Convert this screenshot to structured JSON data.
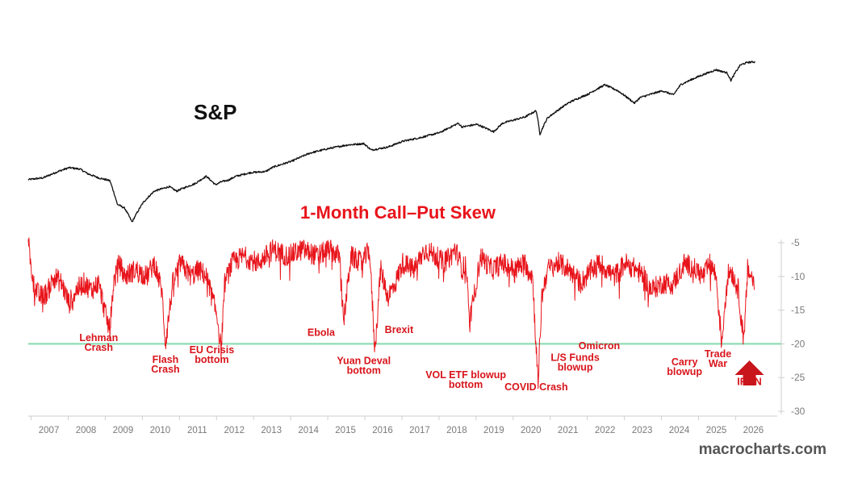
{
  "chart_data": {
    "type": "line",
    "sp_label": "S&P",
    "skew_title": "1-Month Call–Put Skew",
    "watermark": "macrocharts.com",
    "colors": {
      "sp": "#111111",
      "skew": "#e8141b",
      "threshold": "#8fdcb4",
      "axis": "#cfcfcf",
      "tick": "#7a7a7a"
    },
    "x_tick_labels": [
      "2007",
      "2008",
      "2009",
      "2010",
      "2011",
      "2012",
      "2013",
      "2014",
      "2015",
      "2016",
      "2017",
      "2018",
      "2019",
      "2020",
      "2021",
      "2022",
      "2023",
      "2024",
      "2025",
      "2026"
    ],
    "x_tick_values": [
      2007,
      2008,
      2009,
      2010,
      2011,
      2012,
      2013,
      2014,
      2015,
      2016,
      2017,
      2018,
      2019,
      2020,
      2021,
      2022,
      2023,
      2024,
      2025,
      2026
    ],
    "xlim": [
      2006.4,
      2026.6
    ],
    "y_tick_labels": [
      "-5",
      "-10",
      "-15",
      "-20",
      "-25",
      "-30"
    ],
    "y_tick_values": [
      -5,
      -10,
      -15,
      -20,
      -25,
      -30
    ],
    "ylim": [
      -30,
      -5
    ],
    "threshold": -20,
    "series": [
      {
        "id": "sp",
        "x": [
          2006.4,
          2006.8,
          2007.2,
          2007.5,
          2007.8,
          2008.0,
          2008.3,
          2008.6,
          2008.8,
          2009.0,
          2009.2,
          2009.5,
          2009.8,
          2010.2,
          2010.4,
          2010.6,
          2010.9,
          2011.2,
          2011.45,
          2011.6,
          2011.8,
          2012.0,
          2012.4,
          2012.8,
          2013.0,
          2013.5,
          2014.0,
          2014.5,
          2015.0,
          2015.45,
          2015.65,
          2016.1,
          2016.5,
          2017.0,
          2017.5,
          2018.0,
          2018.1,
          2018.5,
          2018.95,
          2019.2,
          2019.8,
          2020.1,
          2020.2,
          2020.4,
          2020.7,
          2021.0,
          2021.5,
          2021.95,
          2022.3,
          2022.75,
          2022.9,
          2023.5,
          2023.8,
          2024.0,
          2024.5,
          2024.95,
          2025.25,
          2025.35,
          2025.6,
          2025.8,
          2026.0
        ],
        "y": [
          1270,
          1300,
          1420,
          1500,
          1470,
          1380,
          1300,
          1250,
          900,
          850,
          700,
          920,
          1080,
          1150,
          1080,
          1130,
          1200,
          1330,
          1180,
          1230,
          1260,
          1330,
          1400,
          1420,
          1510,
          1640,
          1840,
          1960,
          2060,
          2100,
          1920,
          2000,
          2170,
          2290,
          2450,
          2790,
          2650,
          2750,
          2480,
          2800,
          3050,
          3330,
          2400,
          3000,
          3370,
          3750,
          4200,
          4780,
          4400,
          3700,
          4000,
          4400,
          4150,
          4800,
          5400,
          5900,
          5650,
          5080,
          6300,
          6550,
          6600
        ]
      },
      {
        "id": "skew",
        "name": "1-Month Call–Put Skew",
        "x": [
          2006.4,
          2006.45,
          2006.55,
          2006.7,
          2006.9,
          2007.1,
          2007.3,
          2007.5,
          2007.7,
          2007.9,
          2008.1,
          2008.3,
          2008.5,
          2008.6,
          2008.7,
          2008.85,
          2009.0,
          2009.3,
          2009.6,
          2009.8,
          2010.0,
          2010.1,
          2010.3,
          2010.5,
          2010.8,
          2011.0,
          2011.2,
          2011.5,
          2011.6,
          2011.7,
          2011.9,
          2012.2,
          2012.6,
          2013.0,
          2013.4,
          2013.8,
          2014.2,
          2014.5,
          2014.8,
          2014.9,
          2015.1,
          2015.4,
          2015.6,
          2015.75,
          2015.9,
          2016.1,
          2016.3,
          2016.5,
          2016.8,
          2017.1,
          2017.4,
          2017.6,
          2017.8,
          2017.9,
          2018.0,
          2018.1,
          2018.2,
          2018.3,
          2018.6,
          2018.9,
          2019.2,
          2019.5,
          2019.8,
          2020.0,
          2020.15,
          2020.25,
          2020.4,
          2020.7,
          2021.0,
          2021.3,
          2021.6,
          2021.8,
          2022.0,
          2022.2,
          2022.5,
          2022.8,
          2023.0,
          2023.2,
          2023.5,
          2023.8,
          2024.1,
          2024.4,
          2024.6,
          2024.8,
          2024.95,
          2025.1,
          2025.25,
          2025.35,
          2025.55,
          2025.7,
          2025.8,
          2025.9,
          2025.98
        ],
        "y": [
          -3.5,
          -8,
          -11,
          -13,
          -12.5,
          -10,
          -11,
          -14,
          -12,
          -11,
          -12,
          -11,
          -16,
          -18,
          -11,
          -8,
          -10,
          -9,
          -10,
          -8,
          -12,
          -20,
          -11,
          -8,
          -10,
          -9,
          -10,
          -16,
          -21,
          -11,
          -8,
          -7,
          -8,
          -6,
          -7,
          -6,
          -7,
          -6,
          -7,
          -17,
          -7,
          -8,
          -6,
          -21,
          -9,
          -13,
          -11,
          -8,
          -9,
          -6,
          -7,
          -8,
          -7,
          -6,
          -7,
          -9,
          -8,
          -17,
          -7,
          -9,
          -8,
          -9,
          -8,
          -10,
          -26,
          -13,
          -9,
          -8,
          -9,
          -11,
          -9,
          -8,
          -9,
          -10,
          -8,
          -9,
          -10,
          -12,
          -11,
          -11,
          -8,
          -9,
          -10,
          -8,
          -10,
          -20,
          -10,
          -9,
          -12,
          -20,
          -9,
          -10,
          -11
        ]
      }
    ],
    "annotations": [
      {
        "lines": [
          "Lehman",
          "Crash"
        ],
        "x": 2008.3,
        "y": -19.6
      },
      {
        "lines": [
          "Flash",
          "Crash"
        ],
        "x": 2010.1,
        "y": -22.8
      },
      {
        "lines": [
          "EU Crisis",
          "bottom"
        ],
        "x": 2011.35,
        "y": -21.4
      },
      {
        "lines": [
          "Ebola"
        ],
        "x": 2014.3,
        "y": -18.8
      },
      {
        "lines": [
          "Brexit"
        ],
        "x": 2016.4,
        "y": -18.4
      },
      {
        "lines": [
          "Yuan Deval",
          "bottom"
        ],
        "x": 2015.45,
        "y": -23.0
      },
      {
        "lines": [
          "VOL ETF blowup",
          "bottom"
        ],
        "x": 2018.2,
        "y": -25.1
      },
      {
        "lines": [
          "COVID Crash"
        ],
        "x": 2020.1,
        "y": -26.9
      },
      {
        "lines": [
          "L/S Funds",
          "blowup"
        ],
        "x": 2021.15,
        "y": -22.5
      },
      {
        "lines": [
          "Omicron"
        ],
        "x": 2021.8,
        "y": -20.8
      },
      {
        "lines": [
          "Carry",
          "blowup"
        ],
        "x": 2024.1,
        "y": -23.2
      },
      {
        "lines": [
          "Trade",
          "War"
        ],
        "x": 2025.0,
        "y": -22.0
      },
      {
        "lines": [
          "IRAN"
        ],
        "x": 2025.85,
        "y": -26.1
      }
    ]
  }
}
